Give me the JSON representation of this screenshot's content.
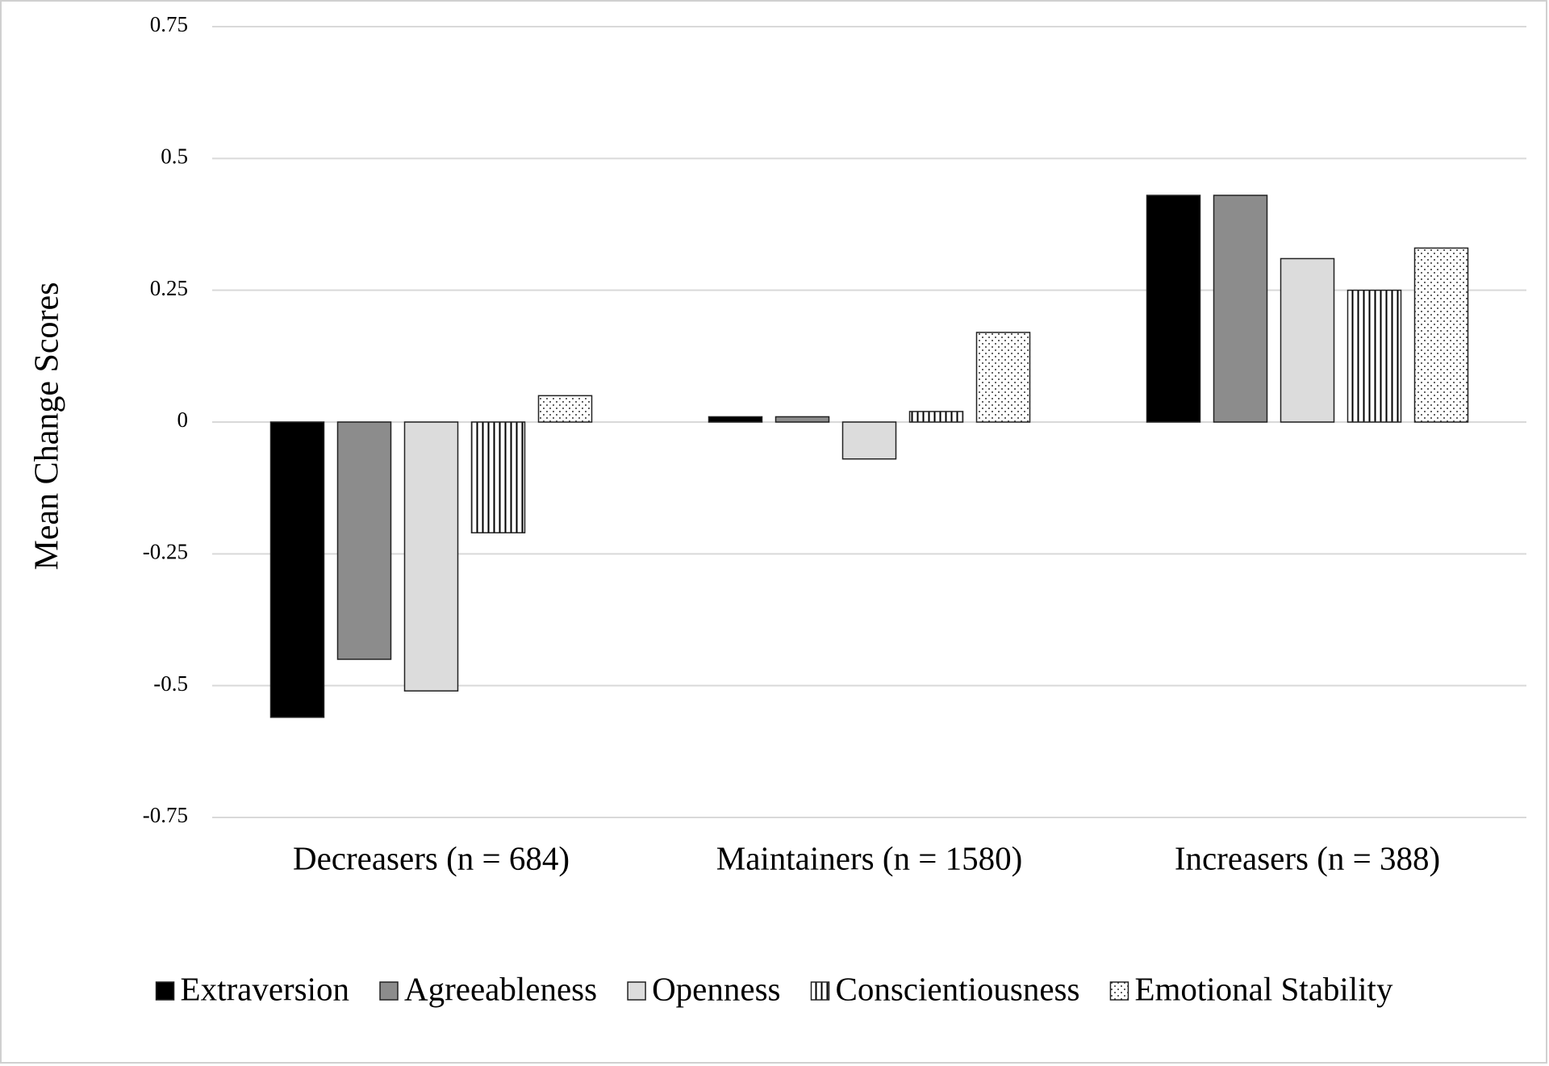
{
  "chart_data": {
    "type": "bar",
    "y_label": "Mean Change Scores",
    "categories": [
      "Decreasers (n = 684)",
      "Maintainers (n = 1580)",
      "Increasers (n = 388)"
    ],
    "series": [
      {
        "name": "Extraversion",
        "color": "#000000",
        "values": [
          -0.56,
          0.01,
          0.43
        ]
      },
      {
        "name": "Agreeableness",
        "color": "#8c8c8c",
        "values": [
          -0.45,
          0.01,
          0.43
        ]
      },
      {
        "name": "Openness",
        "color": "#dcdcdc",
        "values": [
          -0.51,
          -0.07,
          0.31
        ]
      },
      {
        "name": "Conscientiousness",
        "color": "#ffffff",
        "pattern": "vertical-lines",
        "values": [
          -0.21,
          0.02,
          0.25
        ]
      },
      {
        "name": "Emotional Stability",
        "color": "#ffffff",
        "pattern": "dots",
        "values": [
          0.05,
          0.17,
          0.33
        ]
      }
    ],
    "ylim": [
      -0.75,
      0.75
    ],
    "yticks": [
      0.75,
      0.5,
      0.25,
      0,
      -0.25,
      -0.5,
      -0.75
    ],
    "grid": true,
    "legend": "bottom"
  }
}
